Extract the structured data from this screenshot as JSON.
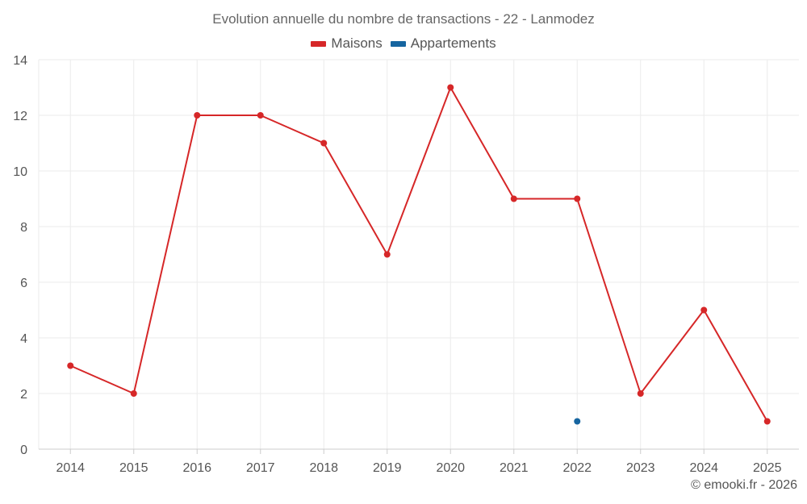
{
  "colors": {
    "maisons": "#d62728",
    "appartements": "#1665a0",
    "grid": "#ebebeb",
    "axis": "#cccccc"
  },
  "chart_data": {
    "type": "line",
    "title": "Evolution annuelle du nombre de transactions - 22 - Lanmodez",
    "categories": [
      "2014",
      "2015",
      "2016",
      "2017",
      "2018",
      "2019",
      "2020",
      "2021",
      "2022",
      "2023",
      "2024",
      "2025"
    ],
    "series": [
      {
        "name": "Maisons",
        "color": "#d62728",
        "values": [
          3,
          2,
          12,
          12,
          11,
          7,
          13,
          9,
          9,
          2,
          5,
          1
        ]
      },
      {
        "name": "Appartements",
        "color": "#1665a0",
        "values": [
          null,
          null,
          null,
          null,
          null,
          null,
          null,
          null,
          1,
          null,
          null,
          null
        ]
      }
    ],
    "yticks": [
      0,
      2,
      4,
      6,
      8,
      10,
      12,
      14
    ],
    "ylim": [
      0,
      14
    ],
    "grid": true,
    "legend_position": "top-center",
    "xlabel": "",
    "ylabel": ""
  },
  "credit": "© emooki.fr - 2026"
}
